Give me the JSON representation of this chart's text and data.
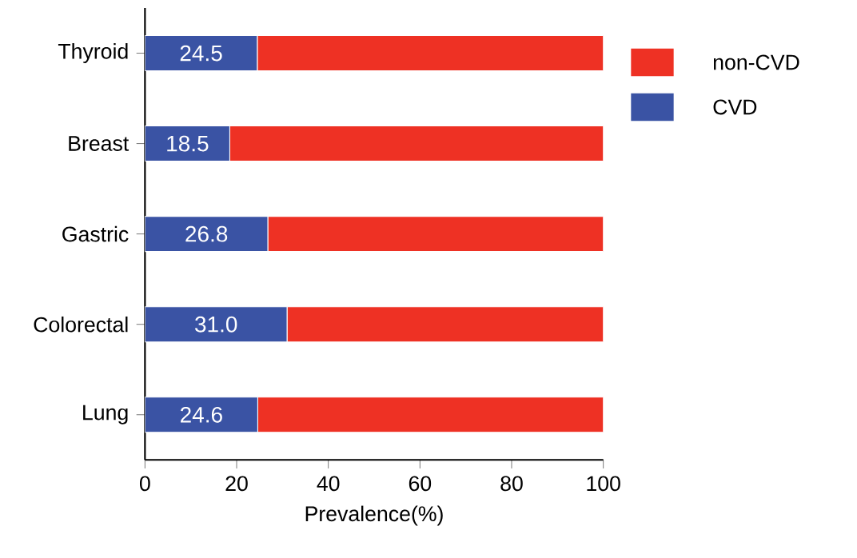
{
  "chart_data": {
    "type": "bar",
    "orientation": "horizontal",
    "stacked": true,
    "xlabel": "Prevalence(%)",
    "categories": [
      "Thyroid",
      "Breast",
      "Gastric",
      "Colorectal",
      "Lung"
    ],
    "series": [
      {
        "name": "CVD",
        "color": "#3a53a4",
        "values": [
          24.5,
          18.5,
          26.8,
          31.0,
          24.6
        ],
        "value_labels": [
          "24.5",
          "18.5",
          "26.8",
          "31.0",
          "24.6"
        ]
      },
      {
        "name": "non-CVD",
        "color": "#ee3124",
        "values": [
          75.5,
          81.5,
          73.2,
          69.0,
          75.4
        ]
      }
    ],
    "xlim": [
      0,
      100
    ],
    "xticks": [
      0,
      20,
      40,
      60,
      80,
      100
    ],
    "legend": "top right"
  }
}
